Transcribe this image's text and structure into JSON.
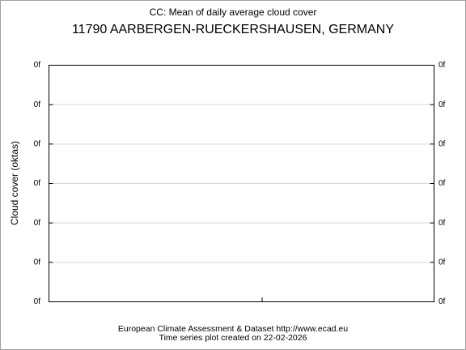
{
  "chart_data": {
    "type": "line",
    "title": "CC: Mean of daily average cloud cover",
    "subtitle": "11790 AARBERGEN-RUECKERSHAUSEN, GERMANY",
    "ylabel": "Cloud cover (oktas)",
    "footer": [
      "European Climate Assessment & Dataset  http://www.ecad.eu",
      "Time series plot created on 22-02-2026"
    ],
    "ylim": [
      0,
      6
    ],
    "yticks": [
      {
        "value": 0,
        "label": "0f"
      },
      {
        "value": 1,
        "label": "0f"
      },
      {
        "value": 2,
        "label": "0f"
      },
      {
        "value": 3,
        "label": "0f"
      },
      {
        "value": 4,
        "label": "0f"
      },
      {
        "value": 5,
        "label": "0f"
      },
      {
        "value": 6,
        "label": "0f"
      }
    ],
    "y2lim": [
      0,
      6
    ],
    "y2ticks": [
      {
        "value": 0,
        "label": "0f"
      },
      {
        "value": 1,
        "label": "0f"
      },
      {
        "value": 2,
        "label": "0f"
      },
      {
        "value": 3,
        "label": "0f"
      },
      {
        "value": 4,
        "label": "0f"
      },
      {
        "value": 5,
        "label": "0f"
      },
      {
        "value": 6,
        "label": "0f"
      }
    ],
    "grid": true
  }
}
